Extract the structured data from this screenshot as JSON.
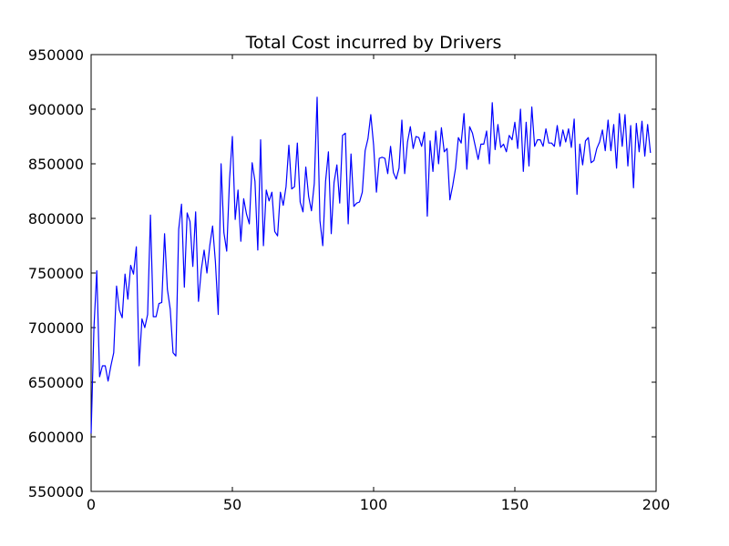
{
  "chart_data": {
    "type": "line",
    "title": "Total Cost incurred by Drivers",
    "xlabel": "",
    "ylabel": "",
    "xlim": [
      0,
      200
    ],
    "ylim": [
      550000,
      950000
    ],
    "x_ticks": [
      0,
      50,
      100,
      150,
      200
    ],
    "y_ticks": [
      550000,
      600000,
      650000,
      700000,
      750000,
      800000,
      850000,
      900000,
      950000
    ],
    "x_tick_labels": [
      "0",
      "50",
      "100",
      "150",
      "200"
    ],
    "y_tick_labels": [
      "550000",
      "600000",
      "650000",
      "700000",
      "750000",
      "800000",
      "850000",
      "900000",
      "950000"
    ],
    "grid": false,
    "legend": "none",
    "line_color": "#0000ff",
    "series": [
      {
        "values": [
          603000,
          700000,
          752000,
          655000,
          665000,
          665000,
          651000,
          665000,
          677000,
          738000,
          716000,
          709000,
          749000,
          726000,
          757000,
          749000,
          774000,
          665000,
          708000,
          700000,
          712000,
          803000,
          710000,
          710000,
          722000,
          723000,
          786000,
          735000,
          717000,
          677000,
          674000,
          790000,
          813000,
          737000,
          805000,
          797000,
          756000,
          806000,
          724000,
          753000,
          771000,
          750000,
          775000,
          793000,
          760000,
          712000,
          850000,
          787000,
          770000,
          836000,
          875000,
          799000,
          826000,
          779000,
          818000,
          804000,
          795000,
          851000,
          834000,
          771000,
          872000,
          775000,
          826000,
          816000,
          824000,
          788000,
          784000,
          824000,
          812000,
          829000,
          867000,
          827000,
          829000,
          869000,
          815000,
          806000,
          847000,
          820000,
          807000,
          832000,
          911000,
          798000,
          775000,
          834000,
          861000,
          786000,
          833000,
          849000,
          814000,
          876000,
          878000,
          795000,
          859000,
          811000,
          814000,
          815000,
          824000,
          862000,
          873000,
          895000,
          867000,
          824000,
          855000,
          856000,
          855000,
          841000,
          866000,
          842000,
          836000,
          846000,
          890000,
          841000,
          870000,
          884000,
          864000,
          875000,
          874000,
          866000,
          879000,
          802000,
          871000,
          843000,
          880000,
          850000,
          883000,
          861000,
          864000,
          817000,
          830000,
          846000,
          874000,
          869000,
          896000,
          845000,
          884000,
          878000,
          866000,
          854000,
          868000,
          868000,
          880000,
          850000,
          906000,
          863000,
          886000,
          865000,
          868000,
          861000,
          876000,
          872000,
          888000,
          864000,
          900000,
          843000,
          888000,
          848000,
          902000,
          866000,
          872000,
          872000,
          866000,
          882000,
          869000,
          869000,
          866000,
          885000,
          866000,
          881000,
          870000,
          882000,
          865000,
          891000,
          822000,
          868000,
          849000,
          871000,
          874000,
          851000,
          853000,
          864000,
          870000,
          881000,
          862000,
          890000,
          862000,
          886000,
          846000,
          896000,
          866000,
          895000,
          848000,
          885000,
          828000,
          887000,
          861000,
          889000,
          857000,
          886000,
          860000
        ]
      }
    ]
  }
}
